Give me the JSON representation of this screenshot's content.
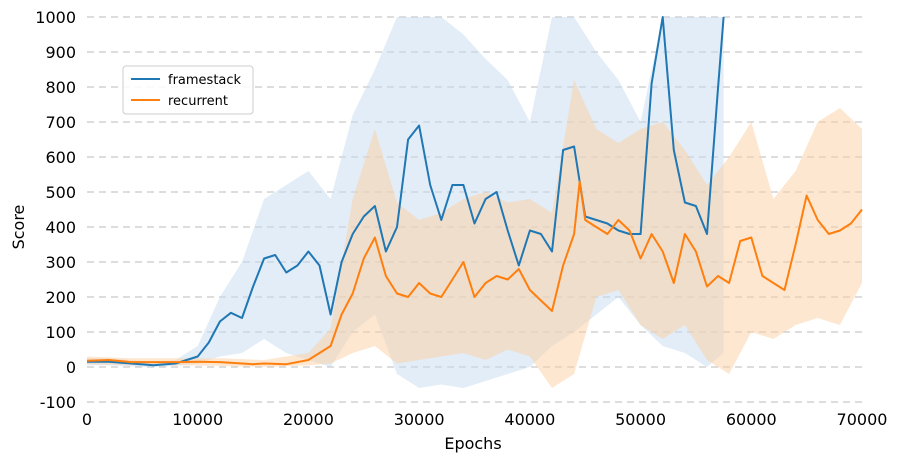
{
  "chart_data": {
    "type": "line",
    "xlabel": "Epochs",
    "ylabel": "Score",
    "xlim": [
      0,
      70000
    ],
    "ylim": [
      -100,
      1000
    ],
    "x_ticks": [
      0,
      10000,
      20000,
      30000,
      40000,
      50000,
      60000,
      70000
    ],
    "y_ticks": [
      -100,
      0,
      100,
      200,
      300,
      400,
      500,
      600,
      700,
      800,
      900,
      1000
    ],
    "grid": "horizontal dashed",
    "legend_position": "upper-left",
    "series": [
      {
        "name": "framestack",
        "color": "#1f77b4",
        "band_color": "#c6dbef",
        "points": [
          [
            0,
            15
          ],
          [
            2000,
            15
          ],
          [
            4000,
            10
          ],
          [
            6000,
            5
          ],
          [
            8000,
            10
          ],
          [
            10000,
            30
          ],
          [
            11000,
            70
          ],
          [
            12000,
            130
          ],
          [
            13000,
            155
          ],
          [
            14000,
            140
          ],
          [
            15000,
            230
          ],
          [
            16000,
            310
          ],
          [
            17000,
            320
          ],
          [
            18000,
            270
          ],
          [
            19000,
            290
          ],
          [
            20000,
            330
          ],
          [
            21000,
            290
          ],
          [
            22000,
            150
          ],
          [
            23000,
            300
          ],
          [
            24000,
            380
          ],
          [
            25000,
            430
          ],
          [
            26000,
            460
          ],
          [
            27000,
            330
          ],
          [
            28000,
            400
          ],
          [
            29000,
            650
          ],
          [
            30000,
            690
          ],
          [
            31000,
            520
          ],
          [
            32000,
            420
          ],
          [
            33000,
            520
          ],
          [
            34000,
            520
          ],
          [
            35000,
            410
          ],
          [
            36000,
            480
          ],
          [
            37000,
            500
          ],
          [
            38000,
            390
          ],
          [
            39000,
            290
          ],
          [
            40000,
            390
          ],
          [
            41000,
            380
          ],
          [
            42000,
            330
          ],
          [
            43000,
            620
          ],
          [
            44000,
            630
          ],
          [
            45000,
            430
          ],
          [
            46000,
            420
          ],
          [
            47000,
            410
          ],
          [
            48000,
            390
          ],
          [
            49000,
            380
          ],
          [
            50000,
            380
          ],
          [
            51000,
            810
          ],
          [
            52000,
            1000
          ],
          [
            53000,
            620
          ],
          [
            54000,
            470
          ],
          [
            55000,
            460
          ],
          [
            56000,
            380
          ],
          [
            57000,
            800
          ],
          [
            57500,
            1000
          ]
        ],
        "band_lower": [
          [
            0,
            5
          ],
          [
            2000,
            5
          ],
          [
            4000,
            2
          ],
          [
            6000,
            0
          ],
          [
            8000,
            3
          ],
          [
            10000,
            10
          ],
          [
            12000,
            30
          ],
          [
            14000,
            40
          ],
          [
            16000,
            80
          ],
          [
            18000,
            40
          ],
          [
            20000,
            20
          ],
          [
            22000,
            0
          ],
          [
            24000,
            100
          ],
          [
            26000,
            150
          ],
          [
            28000,
            -20
          ],
          [
            30000,
            -60
          ],
          [
            32000,
            -50
          ],
          [
            34000,
            -60
          ],
          [
            36000,
            -40
          ],
          [
            38000,
            -20
          ],
          [
            40000,
            0
          ],
          [
            42000,
            60
          ],
          [
            44000,
            100
          ],
          [
            46000,
            150
          ],
          [
            48000,
            200
          ],
          [
            50000,
            120
          ],
          [
            52000,
            60
          ],
          [
            54000,
            40
          ],
          [
            56000,
            0
          ],
          [
            57500,
            40
          ]
        ],
        "band_upper": [
          [
            0,
            25
          ],
          [
            2000,
            25
          ],
          [
            4000,
            20
          ],
          [
            6000,
            15
          ],
          [
            8000,
            20
          ],
          [
            10000,
            60
          ],
          [
            12000,
            200
          ],
          [
            14000,
            300
          ],
          [
            16000,
            480
          ],
          [
            18000,
            520
          ],
          [
            20000,
            560
          ],
          [
            22000,
            480
          ],
          [
            24000,
            720
          ],
          [
            26000,
            850
          ],
          [
            28000,
            1000
          ],
          [
            30000,
            1000
          ],
          [
            32000,
            1000
          ],
          [
            34000,
            950
          ],
          [
            36000,
            880
          ],
          [
            38000,
            820
          ],
          [
            40000,
            700
          ],
          [
            42000,
            1000
          ],
          [
            44000,
            1000
          ],
          [
            46000,
            900
          ],
          [
            48000,
            820
          ],
          [
            50000,
            700
          ],
          [
            52000,
            1000
          ],
          [
            54000,
            1000
          ],
          [
            56000,
            1000
          ],
          [
            57500,
            1000
          ]
        ]
      },
      {
        "name": "recurrent",
        "color": "#ff7f0e",
        "band_color": "#fdd0a2",
        "points": [
          [
            0,
            18
          ],
          [
            2000,
            20
          ],
          [
            4000,
            14
          ],
          [
            6000,
            14
          ],
          [
            8000,
            14
          ],
          [
            10000,
            15
          ],
          [
            12000,
            14
          ],
          [
            14000,
            10
          ],
          [
            15000,
            8
          ],
          [
            16000,
            10
          ],
          [
            18000,
            8
          ],
          [
            20000,
            20
          ],
          [
            21000,
            40
          ],
          [
            22000,
            60
          ],
          [
            23000,
            150
          ],
          [
            24000,
            210
          ],
          [
            25000,
            310
          ],
          [
            26000,
            370
          ],
          [
            27000,
            260
          ],
          [
            28000,
            210
          ],
          [
            29000,
            200
          ],
          [
            30000,
            240
          ],
          [
            31000,
            210
          ],
          [
            32000,
            200
          ],
          [
            33000,
            250
          ],
          [
            34000,
            300
          ],
          [
            35000,
            200
          ],
          [
            36000,
            240
          ],
          [
            37000,
            260
          ],
          [
            38000,
            250
          ],
          [
            39000,
            280
          ],
          [
            40000,
            220
          ],
          [
            41000,
            190
          ],
          [
            42000,
            160
          ],
          [
            43000,
            290
          ],
          [
            44000,
            380
          ],
          [
            44500,
            530
          ],
          [
            45000,
            420
          ],
          [
            46000,
            400
          ],
          [
            47000,
            380
          ],
          [
            48000,
            420
          ],
          [
            49000,
            390
          ],
          [
            50000,
            310
          ],
          [
            51000,
            380
          ],
          [
            52000,
            330
          ],
          [
            53000,
            240
          ],
          [
            54000,
            380
          ],
          [
            55000,
            330
          ],
          [
            56000,
            230
          ],
          [
            57000,
            260
          ],
          [
            58000,
            240
          ],
          [
            59000,
            360
          ],
          [
            60000,
            370
          ],
          [
            61000,
            260
          ],
          [
            62000,
            240
          ],
          [
            63000,
            220
          ],
          [
            64000,
            350
          ],
          [
            65000,
            490
          ],
          [
            66000,
            420
          ],
          [
            67000,
            380
          ],
          [
            68000,
            390
          ],
          [
            69000,
            410
          ],
          [
            70000,
            450
          ]
        ],
        "band_lower": [
          [
            0,
            8
          ],
          [
            4000,
            5
          ],
          [
            8000,
            5
          ],
          [
            12000,
            3
          ],
          [
            16000,
            0
          ],
          [
            20000,
            5
          ],
          [
            22000,
            10
          ],
          [
            24000,
            40
          ],
          [
            26000,
            60
          ],
          [
            28000,
            10
          ],
          [
            30000,
            20
          ],
          [
            32000,
            30
          ],
          [
            34000,
            40
          ],
          [
            36000,
            20
          ],
          [
            38000,
            50
          ],
          [
            40000,
            30
          ],
          [
            42000,
            -60
          ],
          [
            44000,
            -20
          ],
          [
            46000,
            200
          ],
          [
            48000,
            220
          ],
          [
            50000,
            120
          ],
          [
            52000,
            80
          ],
          [
            54000,
            120
          ],
          [
            56000,
            20
          ],
          [
            58000,
            -20
          ],
          [
            60000,
            100
          ],
          [
            62000,
            80
          ],
          [
            64000,
            120
          ],
          [
            66000,
            140
          ],
          [
            68000,
            120
          ],
          [
            70000,
            240
          ]
        ],
        "band_upper": [
          [
            0,
            30
          ],
          [
            4000,
            25
          ],
          [
            8000,
            25
          ],
          [
            12000,
            25
          ],
          [
            16000,
            20
          ],
          [
            20000,
            40
          ],
          [
            22000,
            110
          ],
          [
            24000,
            480
          ],
          [
            26000,
            680
          ],
          [
            28000,
            470
          ],
          [
            30000,
            420
          ],
          [
            32000,
            440
          ],
          [
            34000,
            480
          ],
          [
            36000,
            500
          ],
          [
            38000,
            470
          ],
          [
            40000,
            480
          ],
          [
            42000,
            440
          ],
          [
            44000,
            820
          ],
          [
            46000,
            680
          ],
          [
            48000,
            640
          ],
          [
            50000,
            680
          ],
          [
            52000,
            700
          ],
          [
            54000,
            620
          ],
          [
            56000,
            520
          ],
          [
            58000,
            600
          ],
          [
            60000,
            700
          ],
          [
            62000,
            480
          ],
          [
            64000,
            560
          ],
          [
            66000,
            700
          ],
          [
            68000,
            740
          ],
          [
            70000,
            680
          ]
        ]
      }
    ]
  }
}
